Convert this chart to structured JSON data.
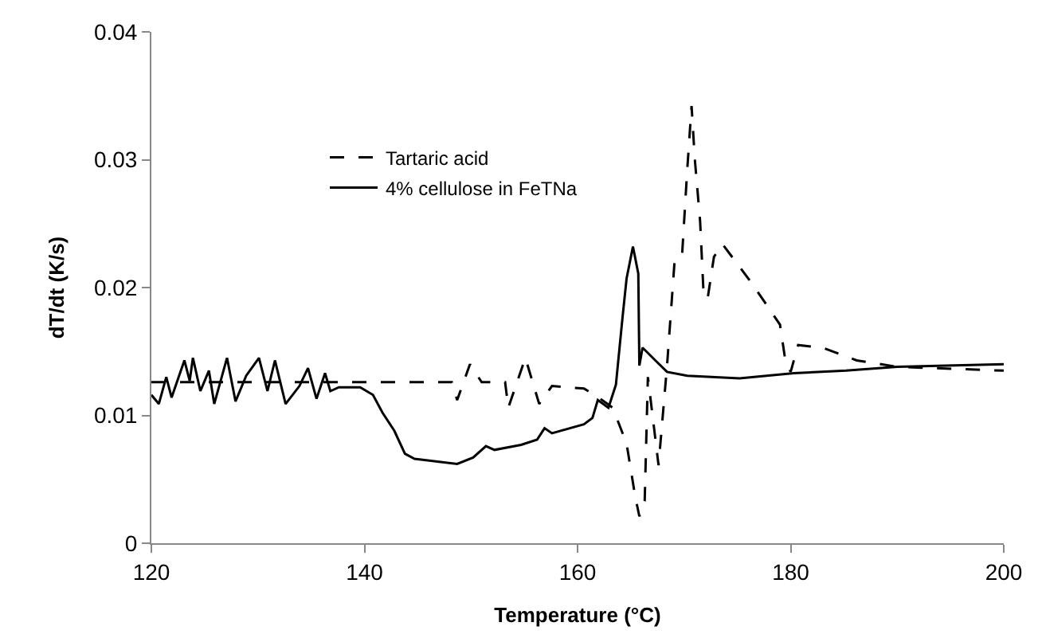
{
  "chart_data": {
    "type": "line",
    "xlabel": "Temperature (°C)",
    "ylabel": "dT/dt (K/s)",
    "xlim": [
      120,
      200
    ],
    "xticks": [
      120,
      140,
      160,
      180,
      200
    ],
    "ylim": [
      0,
      0.04
    ],
    "yticks": [
      0,
      0.01,
      0.02,
      0.03,
      0.04
    ],
    "legend": "top left",
    "marker": "none",
    "series": [
      {
        "name": "Tartaric acid",
        "color": "#000000",
        "line_style": "dashed",
        "x": [
          120,
          148.2,
          148.7,
          149.9,
          151,
          153.2,
          153.5,
          155.1,
          156.4,
          157.6,
          160.6,
          161.8,
          163.3,
          164.6,
          165.4,
          165.8,
          166.3,
          166.6,
          167.6,
          168.4,
          169.1,
          169.8,
          170.3,
          170.7,
          171.0,
          171.5,
          171.8,
          172.2,
          172.8,
          173.6,
          176.3,
          179,
          179.5,
          180,
          180.7,
          183,
          186.2,
          190,
          200
        ],
        "values": [
          0.0126,
          0.0126,
          0.0112,
          0.014,
          0.0126,
          0.0126,
          0.0106,
          0.0145,
          0.0109,
          0.0123,
          0.0121,
          0.0115,
          0.0106,
          0.0078,
          0.0037,
          0.0021,
          0.0033,
          0.013,
          0.0061,
          0.0139,
          0.022,
          0.0224,
          0.0293,
          0.0342,
          0.0301,
          0.0252,
          0.02,
          0.0191,
          0.0224,
          0.0234,
          0.0204,
          0.0171,
          0.0143,
          0.0134,
          0.0155,
          0.0153,
          0.0143,
          0.0138,
          0.0135
        ]
      },
      {
        "name": "4% cellulose in FeTNa",
        "color": "#000000",
        "line_style": "solid",
        "x": [
          120,
          120.7,
          121.4,
          121.9,
          123.1,
          123.6,
          123.9,
          124.6,
          125.4,
          125.9,
          127.1,
          127.9,
          128.9,
          130.1,
          130.9,
          131.6,
          132.6,
          133.9,
          134.7,
          135.5,
          136.3,
          136.8,
          137.6,
          139.6,
          140.8,
          141.7,
          142.8,
          143.8,
          144.7,
          146.7,
          148.7,
          150.2,
          151.4,
          152.2,
          154.7,
          156.2,
          156.9,
          157.6,
          160.6,
          161.4,
          161.9,
          162.9,
          163.6,
          164.2,
          164.6,
          165.2,
          165.7,
          165.8,
          166.1,
          167.3,
          168.4,
          170.3,
          175.2,
          180.3,
          185.2,
          190,
          194.6,
          200
        ],
        "values": [
          0.0116,
          0.0109,
          0.013,
          0.0114,
          0.0143,
          0.0127,
          0.0145,
          0.0119,
          0.0135,
          0.0109,
          0.0145,
          0.0111,
          0.0131,
          0.0145,
          0.0119,
          0.0143,
          0.0109,
          0.0123,
          0.0137,
          0.0113,
          0.0133,
          0.0119,
          0.0122,
          0.0122,
          0.0116,
          0.0102,
          0.0088,
          0.007,
          0.0066,
          0.0064,
          0.0062,
          0.0067,
          0.0076,
          0.0073,
          0.0077,
          0.0081,
          0.009,
          0.0086,
          0.0093,
          0.0098,
          0.0112,
          0.0106,
          0.0124,
          0.0175,
          0.0207,
          0.0232,
          0.0211,
          0.0139,
          0.0153,
          0.0143,
          0.0134,
          0.0131,
          0.0129,
          0.0133,
          0.0135,
          0.0138,
          0.0139,
          0.014
        ]
      }
    ]
  }
}
